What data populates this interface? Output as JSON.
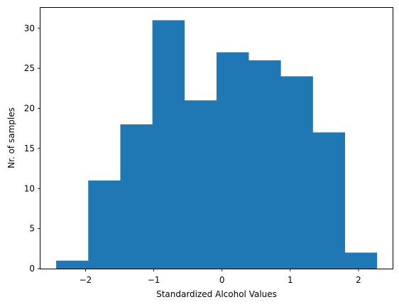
{
  "chart_data": {
    "type": "bar",
    "histogram": true,
    "title": "",
    "xlabel": "Standardized Alcohol Values",
    "ylabel": "Nr. of samples",
    "bar_color": "#1f77b4",
    "bin_edges": [
      -2.43,
      -1.96,
      -1.49,
      -1.02,
      -0.55,
      -0.08,
      0.39,
      0.86,
      1.33,
      1.8,
      2.27
    ],
    "values": [
      1,
      11,
      18,
      31,
      21,
      27,
      26,
      24,
      17,
      2
    ],
    "xlim": [
      -2.66,
      2.5
    ],
    "ylim": [
      0,
      32.55
    ],
    "xticks": [
      {
        "value": -2,
        "label": "−2"
      },
      {
        "value": -1,
        "label": "−1"
      },
      {
        "value": 0,
        "label": "0"
      },
      {
        "value": 1,
        "label": "1"
      },
      {
        "value": 2,
        "label": "2"
      }
    ],
    "yticks": [
      {
        "value": 0,
        "label": "0"
      },
      {
        "value": 5,
        "label": "5"
      },
      {
        "value": 10,
        "label": "10"
      },
      {
        "value": 15,
        "label": "15"
      },
      {
        "value": 20,
        "label": "20"
      },
      {
        "value": 25,
        "label": "25"
      },
      {
        "value": 30,
        "label": "30"
      }
    ],
    "grid": false,
    "legend": "none"
  }
}
